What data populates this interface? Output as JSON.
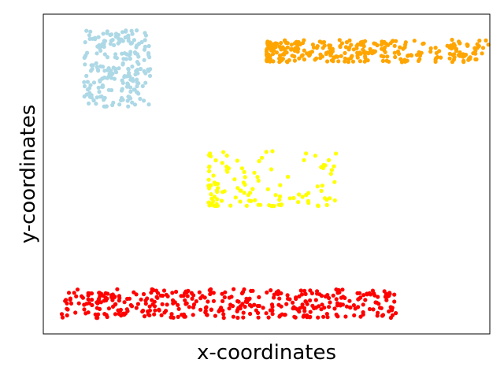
{
  "chart_data": {
    "type": "scatter",
    "title": "",
    "xlabel": "x-coordinates",
    "ylabel": "y-coordinates",
    "xlim": [
      0,
      100
    ],
    "ylim": [
      0,
      100
    ],
    "xticks": [],
    "yticks": [],
    "grid": false,
    "legend": "none",
    "series": [
      {
        "color": "#add8e6",
        "cluster": {
          "x_range": [
            9,
            24
          ],
          "y_range": [
            71,
            95
          ],
          "count": 220,
          "x_density": "uniform",
          "y_density": "uniform"
        }
      },
      {
        "color": "#ffa500",
        "cluster": {
          "x_range": [
            50,
            100
          ],
          "y_range": [
            85,
            92
          ],
          "count": 300,
          "x_density": "left-weighted",
          "y_density": "uniform"
        }
      },
      {
        "color": "#ffff00",
        "cluster": {
          "x_range": [
            37,
            67
          ],
          "y_range": [
            40,
            58
          ],
          "count": 120,
          "x_density": "left-weighted",
          "y_density": "bottom-weighted"
        }
      },
      {
        "color": "#ff0000",
        "cluster": {
          "x_range": [
            4,
            79
          ],
          "y_range": [
            5,
            14
          ],
          "count": 400,
          "x_density": "uniform",
          "y_density": "uniform"
        }
      }
    ]
  }
}
